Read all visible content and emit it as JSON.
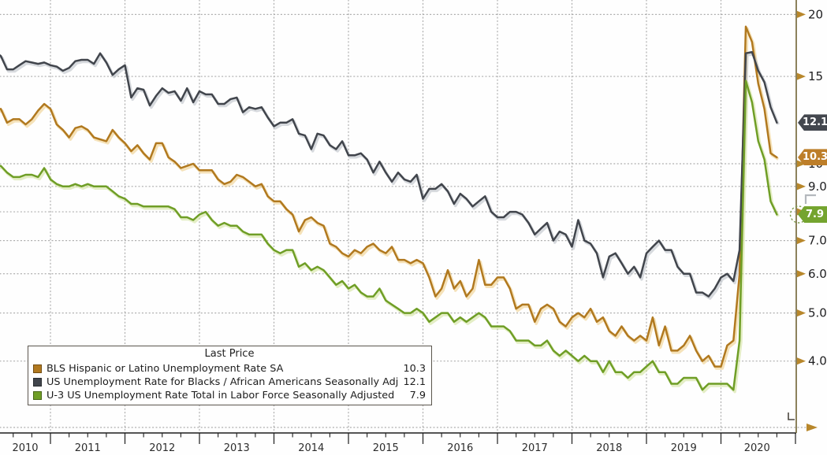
{
  "chart_data": {
    "type": "line",
    "title": "",
    "x_start": "2010-01",
    "x_end": "2020-09",
    "freq": "monthly",
    "x_year_labels": [
      "2010",
      "2011",
      "2012",
      "2013",
      "2014",
      "2015",
      "2016",
      "2017",
      "2018",
      "2019",
      "2020"
    ],
    "y_axis": {
      "scale": "log",
      "range_approx": [
        3.1,
        21.3
      ],
      "ticks": [
        {
          "value": 20,
          "label": "20"
        },
        {
          "value": 15,
          "label": "15"
        },
        {
          "value": 10,
          "label": "10"
        },
        {
          "value": 9,
          "label": "9.0"
        },
        {
          "value": 8,
          "label": "8.0"
        },
        {
          "value": 7,
          "label": "7.0"
        },
        {
          "value": 6,
          "label": "6.0"
        },
        {
          "value": 5,
          "label": "5.0"
        },
        {
          "value": 4,
          "label": "4.0"
        }
      ],
      "side": "right",
      "grid": "dotted"
    },
    "legend": {
      "title": "Last Price",
      "position": "bottom-left"
    },
    "series": [
      {
        "id": "hispanic",
        "name": "BLS Hispanic or Latino Unemployment Rate SA",
        "last_price": "10.3",
        "color": "#b1791f",
        "glow_color": "#ecca80",
        "badge_color": "#bd7e29",
        "values": [
          12.8,
          12.8,
          12.8,
          12.9,
          12.1,
          12.3,
          12.3,
          12.0,
          12.3,
          12.8,
          13.2,
          12.9,
          12.0,
          11.7,
          11.3,
          11.8,
          11.9,
          11.7,
          11.3,
          11.2,
          11.1,
          11.7,
          11.3,
          11.0,
          10.6,
          10.9,
          10.5,
          10.2,
          11.0,
          11.0,
          10.3,
          10.1,
          9.8,
          9.9,
          10.0,
          9.7,
          9.7,
          9.7,
          9.3,
          9.1,
          9.2,
          9.5,
          9.4,
          9.2,
          9.0,
          9.1,
          8.6,
          8.4,
          8.4,
          8.1,
          7.9,
          7.3,
          7.7,
          7.8,
          7.6,
          7.5,
          6.9,
          6.8,
          6.6,
          6.5,
          6.7,
          6.6,
          6.8,
          6.9,
          6.7,
          6.6,
          6.8,
          6.4,
          6.4,
          6.3,
          6.4,
          6.3,
          5.9,
          5.4,
          5.6,
          6.1,
          5.6,
          5.8,
          5.4,
          5.6,
          6.4,
          5.7,
          5.7,
          5.9,
          5.9,
          5.6,
          5.1,
          5.2,
          5.2,
          4.8,
          5.1,
          5.2,
          5.1,
          4.8,
          4.7,
          4.9,
          5.0,
          4.9,
          5.1,
          4.8,
          4.9,
          4.6,
          4.5,
          4.7,
          4.5,
          4.4,
          4.5,
          4.4,
          4.9,
          4.3,
          4.7,
          4.2,
          4.2,
          4.3,
          4.5,
          4.2,
          4.0,
          4.1,
          3.9,
          3.9,
          4.3,
          4.4,
          6.0,
          18.9,
          17.6,
          14.5,
          12.9,
          10.5,
          10.3
        ]
      },
      {
        "id": "black",
        "name": "US Unemployment Rate for Blacks / African Americans Seasonally Adjusted",
        "last_price": "12.1",
        "color": "#41454c",
        "glow_color": "#b6bbc2",
        "badge_color": "#43474e",
        "values": [
          16.5,
          15.9,
          16.8,
          16.5,
          15.5,
          15.5,
          15.8,
          16.1,
          16.0,
          15.9,
          16.0,
          15.8,
          15.7,
          15.4,
          15.6,
          16.1,
          16.2,
          16.2,
          15.9,
          16.7,
          16.0,
          15.1,
          15.5,
          15.8,
          13.6,
          14.2,
          14.1,
          13.1,
          13.7,
          14.2,
          13.9,
          14.0,
          13.4,
          14.2,
          13.3,
          14.0,
          13.8,
          13.8,
          13.2,
          13.2,
          13.5,
          13.6,
          12.7,
          13.0,
          12.9,
          13.0,
          12.4,
          11.9,
          12.1,
          12.1,
          12.3,
          11.5,
          11.4,
          10.7,
          11.5,
          11.4,
          10.9,
          10.7,
          11.1,
          10.4,
          10.4,
          10.5,
          10.2,
          9.6,
          10.1,
          9.6,
          9.2,
          9.6,
          9.3,
          9.2,
          9.5,
          8.5,
          8.9,
          8.9,
          9.1,
          8.8,
          8.3,
          8.7,
          8.5,
          8.2,
          8.4,
          8.6,
          8.0,
          7.8,
          7.8,
          8.0,
          8.0,
          7.9,
          7.6,
          7.2,
          7.4,
          7.6,
          7.0,
          7.3,
          7.2,
          6.8,
          7.7,
          7.0,
          6.9,
          6.6,
          5.9,
          6.5,
          6.6,
          6.3,
          6.0,
          6.2,
          5.9,
          6.6,
          6.8,
          7.0,
          6.7,
          6.7,
          6.2,
          6.0,
          6.0,
          5.5,
          5.5,
          5.4,
          5.6,
          5.9,
          6.0,
          5.8,
          6.7,
          16.7,
          16.8,
          15.4,
          14.6,
          13.0,
          12.1
        ]
      },
      {
        "id": "u3",
        "name": "U-3 US Unemployment Rate Total in Labor Force Seasonally Adjusted",
        "last_price": "7.9",
        "color": "#6f9e26",
        "glow_color": "#cde096",
        "badge_color": "#74a42f",
        "values": [
          9.8,
          9.8,
          9.9,
          9.9,
          9.6,
          9.4,
          9.4,
          9.5,
          9.5,
          9.4,
          9.8,
          9.3,
          9.1,
          9.0,
          9.0,
          9.1,
          9.0,
          9.1,
          9.0,
          9.0,
          9.0,
          8.8,
          8.6,
          8.5,
          8.3,
          8.3,
          8.2,
          8.2,
          8.2,
          8.2,
          8.2,
          8.1,
          7.8,
          7.8,
          7.7,
          7.9,
          8.0,
          7.7,
          7.5,
          7.6,
          7.5,
          7.5,
          7.3,
          7.2,
          7.2,
          7.2,
          6.9,
          6.7,
          6.6,
          6.7,
          6.7,
          6.2,
          6.3,
          6.1,
          6.2,
          6.1,
          5.9,
          5.7,
          5.8,
          5.6,
          5.7,
          5.5,
          5.4,
          5.4,
          5.6,
          5.3,
          5.2,
          5.1,
          5.0,
          5.0,
          5.1,
          5.0,
          4.8,
          4.9,
          5.0,
          5.0,
          4.8,
          4.9,
          4.8,
          4.9,
          5.0,
          4.9,
          4.7,
          4.7,
          4.7,
          4.6,
          4.4,
          4.4,
          4.4,
          4.3,
          4.3,
          4.4,
          4.2,
          4.1,
          4.2,
          4.1,
          4.0,
          4.1,
          4.0,
          4.0,
          3.8,
          4.0,
          3.8,
          3.8,
          3.7,
          3.8,
          3.8,
          3.9,
          4.0,
          3.8,
          3.8,
          3.6,
          3.6,
          3.7,
          3.7,
          3.7,
          3.5,
          3.6,
          3.6,
          3.6,
          3.6,
          3.5,
          4.4,
          14.7,
          13.3,
          11.1,
          10.2,
          8.4,
          7.9
        ]
      }
    ],
    "badges": [
      {
        "series": "black",
        "label": "12.1",
        "value": 12.1
      },
      {
        "series": "hispanic",
        "label": "10.3",
        "value": 10.3
      },
      {
        "series": "u3",
        "label": "7.9",
        "value": 7.9
      }
    ],
    "colors": {
      "grid": "#ababab",
      "bottom_axis": "#1d1d1d",
      "right_axis": "#6f6233",
      "tick_arrow": "#b8872b",
      "tick_label": "#1e1e20",
      "year_label": "#2c2c2c",
      "legend_border": "#5a554d"
    }
  }
}
